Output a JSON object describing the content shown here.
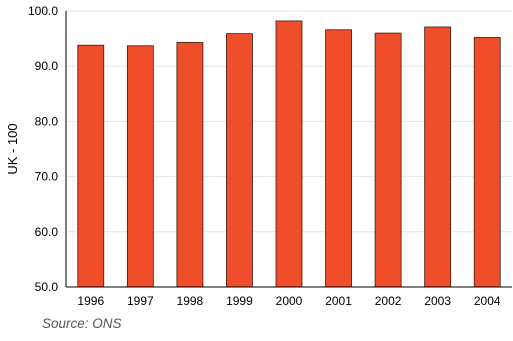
{
  "chart_data": {
    "type": "bar",
    "categories": [
      "1996",
      "1997",
      "1998",
      "1999",
      "2000",
      "2001",
      "2002",
      "2003",
      "2004"
    ],
    "values": [
      93.8,
      93.7,
      94.3,
      95.9,
      98.2,
      96.6,
      96.0,
      97.1,
      95.2
    ],
    "title": "",
    "xlabel": "",
    "ylabel": "UK - 100",
    "ylim": [
      50,
      100
    ],
    "yticks": [
      "50.0",
      "60.0",
      "70.0",
      "80.0",
      "90.0",
      "100.0"
    ],
    "ytick_values": [
      50,
      60,
      70,
      80,
      90,
      100
    ],
    "grid": true,
    "bar_color": "#f04e2a",
    "bar_edge_color": "#3a1a10",
    "grid_color": "#e6e6e6"
  },
  "source_note": "Source: ONS"
}
